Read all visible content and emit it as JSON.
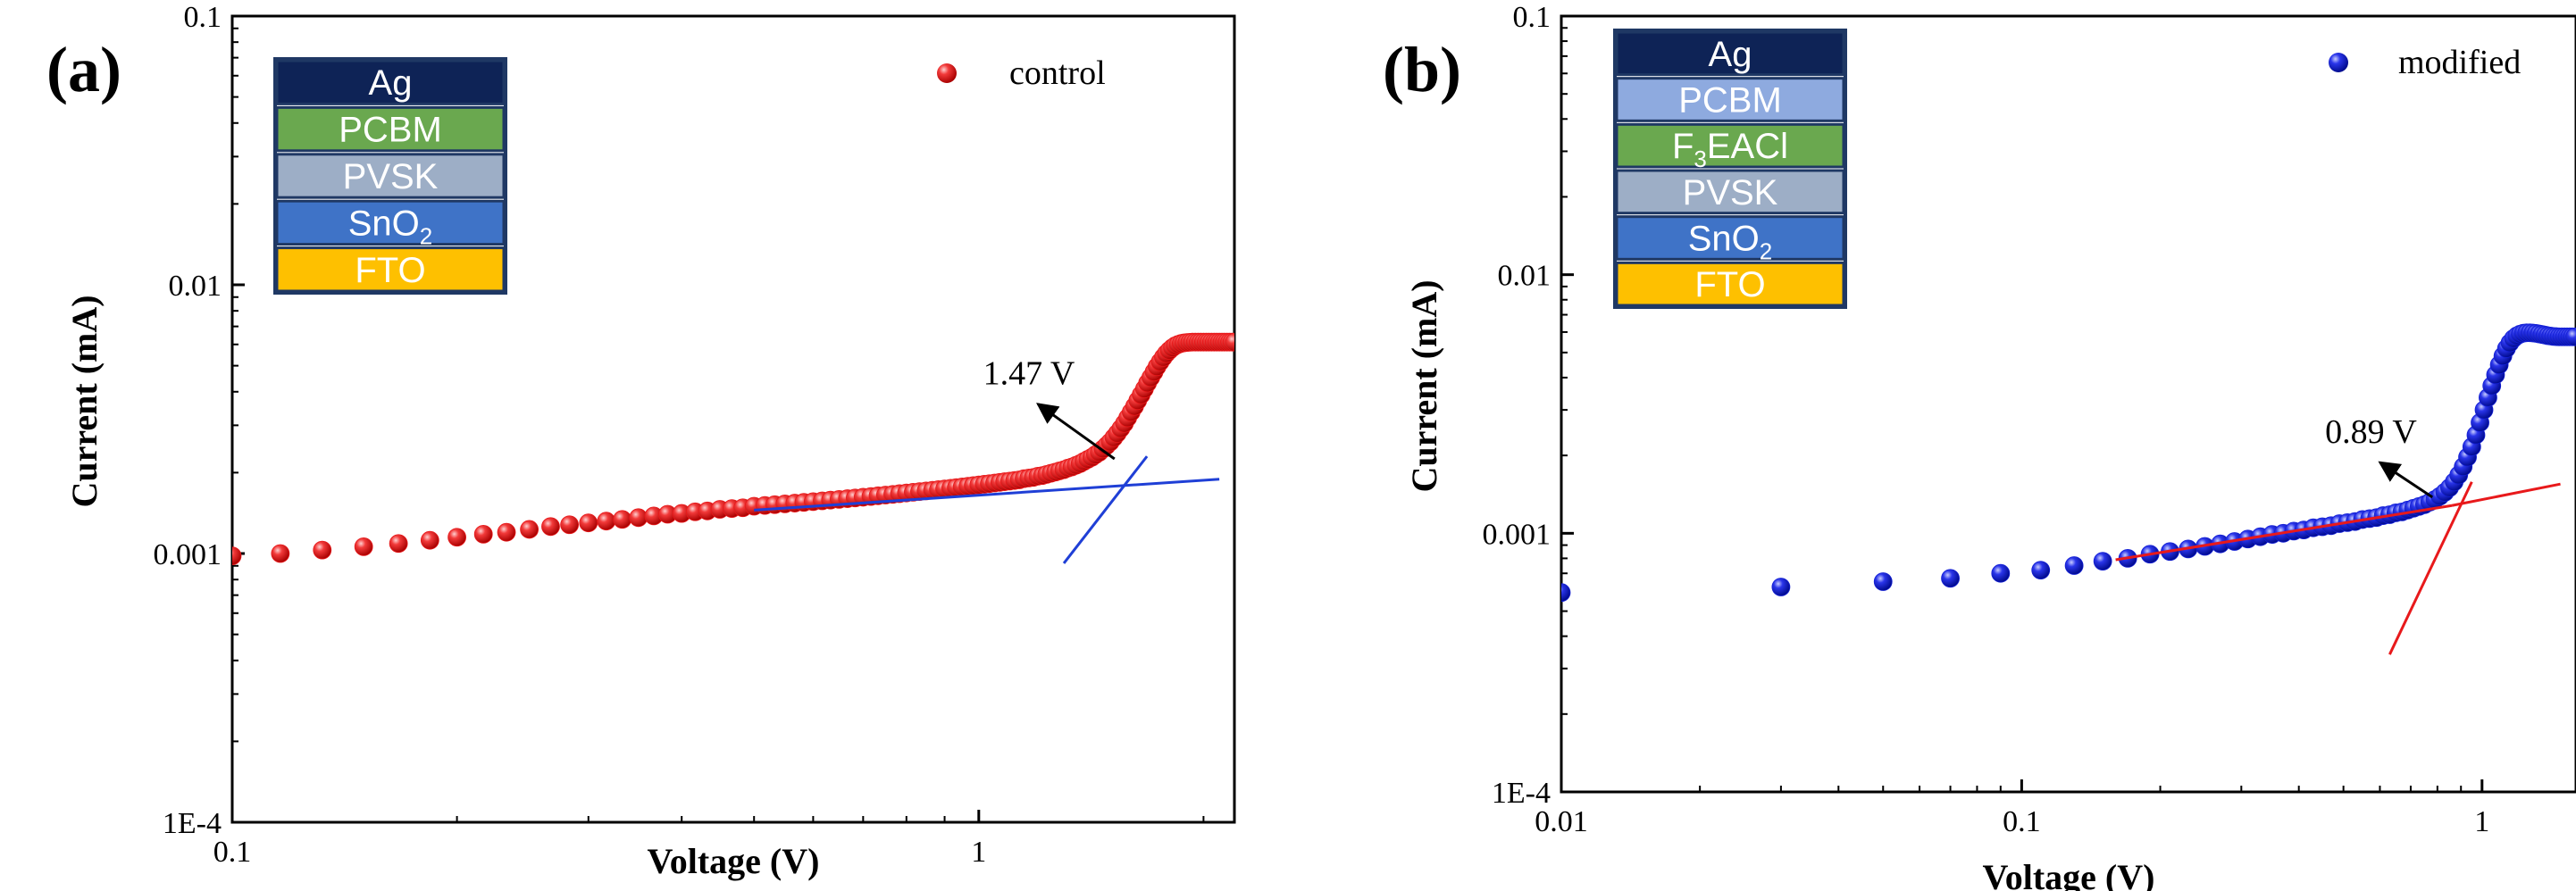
{
  "chart_data": [
    {
      "type": "scatter",
      "panel_label": "(a)",
      "xlabel": "Voltage (V)",
      "ylabel": "Current (mA)",
      "x_scale": "log",
      "y_scale": "log",
      "xlim": [
        0.1,
        2.2
      ],
      "ylim": [
        0.0001,
        0.1
      ],
      "x_ticks": [
        {
          "value": 0.1,
          "label": "0.1"
        },
        {
          "value": 1,
          "label": "1"
        }
      ],
      "y_ticks": [
        {
          "value": 0.0001,
          "label": "1E-4"
        },
        {
          "value": 0.001,
          "label": "0.001"
        },
        {
          "value": 0.01,
          "label": "0.01"
        },
        {
          "value": 0.1,
          "label": "0.1"
        }
      ],
      "legend": {
        "label": "control",
        "placement": "top-right"
      },
      "series": [
        {
          "name": "control",
          "color": "#e8191b",
          "points": [
            [
              0.1,
              0.00098
            ],
            [
              0.116,
              0.001
            ],
            [
              0.132,
              0.00103
            ],
            [
              0.15,
              0.00106
            ],
            [
              0.167,
              0.00109
            ],
            [
              0.184,
              0.00112
            ],
            [
              0.2,
              0.00115
            ],
            [
              0.217,
              0.00118
            ],
            [
              0.233,
              0.0012
            ],
            [
              0.25,
              0.00123
            ],
            [
              0.267,
              0.00126
            ],
            [
              0.283,
              0.00128
            ],
            [
              0.3,
              0.0013
            ],
            [
              0.317,
              0.00132
            ],
            [
              0.333,
              0.00134
            ],
            [
              0.35,
              0.00136
            ],
            [
              0.367,
              0.00138
            ],
            [
              0.383,
              0.0014
            ],
            [
              0.4,
              0.00141
            ],
            [
              0.417,
              0.00143
            ],
            [
              0.433,
              0.00144
            ],
            [
              0.45,
              0.00146
            ],
            [
              0.467,
              0.00147
            ],
            [
              0.483,
              0.00148
            ],
            [
              0.5,
              0.0015
            ],
            [
              0.517,
              0.00151
            ],
            [
              0.533,
              0.00152
            ],
            [
              0.55,
              0.00153
            ],
            [
              0.567,
              0.00154
            ],
            [
              0.583,
              0.00155
            ],
            [
              0.6,
              0.00156
            ],
            [
              0.617,
              0.00157
            ],
            [
              0.633,
              0.00158
            ],
            [
              0.65,
              0.00159
            ],
            [
              0.667,
              0.0016
            ],
            [
              0.683,
              0.00161
            ],
            [
              0.7,
              0.00162
            ],
            [
              0.717,
              0.00163
            ],
            [
              0.733,
              0.00164
            ],
            [
              0.75,
              0.00165
            ],
            [
              0.767,
              0.00166
            ],
            [
              0.783,
              0.00167
            ],
            [
              0.8,
              0.00168
            ],
            [
              0.817,
              0.00169
            ],
            [
              0.833,
              0.0017
            ],
            [
              0.85,
              0.00171
            ],
            [
              0.867,
              0.00172
            ],
            [
              0.883,
              0.00173
            ],
            [
              0.9,
              0.00174
            ],
            [
              0.917,
              0.00175
            ],
            [
              0.933,
              0.00176
            ],
            [
              0.95,
              0.00177
            ],
            [
              0.967,
              0.00178
            ],
            [
              0.983,
              0.00179
            ],
            [
              1.0,
              0.0018
            ],
            [
              1.017,
              0.00181
            ],
            [
              1.033,
              0.00182
            ],
            [
              1.05,
              0.00183
            ],
            [
              1.067,
              0.00184
            ],
            [
              1.083,
              0.00185
            ],
            [
              1.1,
              0.00186
            ],
            [
              1.117,
              0.00187
            ],
            [
              1.133,
              0.00188
            ],
            [
              1.15,
              0.0019
            ],
            [
              1.167,
              0.00191
            ],
            [
              1.183,
              0.00192
            ],
            [
              1.2,
              0.00194
            ],
            [
              1.217,
              0.00195
            ],
            [
              1.233,
              0.00197
            ],
            [
              1.25,
              0.00199
            ],
            [
              1.267,
              0.00201
            ],
            [
              1.283,
              0.00203
            ],
            [
              1.3,
              0.00205
            ],
            [
              1.317,
              0.00208
            ],
            [
              1.333,
              0.0021
            ],
            [
              1.35,
              0.00213
            ],
            [
              1.367,
              0.00216
            ],
            [
              1.383,
              0.0022
            ],
            [
              1.4,
              0.00224
            ],
            [
              1.417,
              0.00228
            ],
            [
              1.433,
              0.00233
            ],
            [
              1.45,
              0.00238
            ],
            [
              1.467,
              0.00245
            ],
            [
              1.483,
              0.00252
            ],
            [
              1.5,
              0.0026
            ],
            [
              1.517,
              0.0027
            ],
            [
              1.533,
              0.0028
            ],
            [
              1.55,
              0.00292
            ],
            [
              1.567,
              0.00305
            ],
            [
              1.583,
              0.0032
            ],
            [
              1.6,
              0.00336
            ],
            [
              1.617,
              0.00353
            ],
            [
              1.633,
              0.00371
            ],
            [
              1.65,
              0.0039
            ],
            [
              1.667,
              0.0041
            ],
            [
              1.683,
              0.00431
            ],
            [
              1.7,
              0.00452
            ],
            [
              1.717,
              0.00474
            ],
            [
              1.733,
              0.00496
            ],
            [
              1.75,
              0.00517
            ],
            [
              1.767,
              0.00537
            ],
            [
              1.783,
              0.00555
            ],
            [
              1.8,
              0.0057
            ],
            [
              1.817,
              0.00583
            ],
            [
              1.833,
              0.00593
            ],
            [
              1.85,
              0.006
            ],
            [
              1.867,
              0.00605
            ],
            [
              1.883,
              0.00608
            ],
            [
              1.9,
              0.0061
            ],
            [
              1.917,
              0.00611
            ],
            [
              1.933,
              0.00612
            ],
            [
              1.95,
              0.00612
            ],
            [
              1.967,
              0.00612
            ],
            [
              1.983,
              0.00612
            ],
            [
              2.0,
              0.00612
            ],
            [
              2.017,
              0.00612
            ],
            [
              2.033,
              0.00612
            ],
            [
              2.05,
              0.00612
            ],
            [
              2.067,
              0.00612
            ],
            [
              2.083,
              0.00612
            ],
            [
              2.1,
              0.00612
            ],
            [
              2.117,
              0.00612
            ],
            [
              2.133,
              0.00612
            ],
            [
              2.15,
              0.00612
            ],
            [
              2.167,
              0.00612
            ],
            [
              2.183,
              0.00612
            ],
            [
              2.2,
              0.00612
            ]
          ]
        }
      ],
      "fit_lines": [
        {
          "color": "#1f3fd6",
          "from": [
            0.5,
            0.00145
          ],
          "to": [
            2.1,
            0.00189
          ]
        },
        {
          "color": "#1f3fd6",
          "from": [
            1.3,
            0.00092
          ],
          "to": [
            1.68,
            0.0023
          ]
        }
      ],
      "annotation": {
        "text": "1.47 V",
        "arrow_from": [
          1.52,
          0.00225
        ],
        "arrow_to": [
          1.2,
          0.0036
        ]
      },
      "device_stack": [
        {
          "label": "Ag",
          "color": "#0e2356"
        },
        {
          "label": "PCBM",
          "color": "#6aa84f"
        },
        {
          "label": "PVSK",
          "color": "#9daec6"
        },
        {
          "label": "SnO",
          "sub": "2",
          "color": "#3f73c7"
        },
        {
          "label": "FTO",
          "color": "#fec000"
        }
      ]
    },
    {
      "type": "scatter",
      "panel_label": "(b)",
      "xlabel": "Voltage (V)",
      "ylabel": "Current (mA)",
      "x_scale": "log",
      "y_scale": "log",
      "xlim": [
        0.01,
        1.6
      ],
      "ylim": [
        0.0001,
        0.1
      ],
      "x_ticks": [
        {
          "value": 0.01,
          "label": "0.01"
        },
        {
          "value": 0.1,
          "label": "0.1"
        },
        {
          "value": 1,
          "label": "1"
        }
      ],
      "y_ticks": [
        {
          "value": 0.0001,
          "label": "1E-4"
        },
        {
          "value": 0.001,
          "label": "0.001"
        },
        {
          "value": 0.01,
          "label": "0.01"
        },
        {
          "value": 0.1,
          "label": "0.1"
        }
      ],
      "legend": {
        "label": "modified",
        "placement": "top-right"
      },
      "series": [
        {
          "name": "modified",
          "color": "#1420d6",
          "points": [
            [
              0.01,
              0.00059
            ],
            [
              0.03,
              0.00062
            ],
            [
              0.05,
              0.00065
            ],
            [
              0.07,
              0.00067
            ],
            [
              0.09,
              0.0007
            ],
            [
              0.11,
              0.00072
            ],
            [
              0.13,
              0.00075
            ],
            [
              0.15,
              0.00078
            ],
            [
              0.17,
              0.0008
            ],
            [
              0.19,
              0.00083
            ],
            [
              0.21,
              0.00085
            ],
            [
              0.23,
              0.00087
            ],
            [
              0.25,
              0.00089
            ],
            [
              0.27,
              0.00091
            ],
            [
              0.29,
              0.00093
            ],
            [
              0.31,
              0.00095
            ],
            [
              0.33,
              0.00097
            ],
            [
              0.35,
              0.00099
            ],
            [
              0.37,
              0.001
            ],
            [
              0.39,
              0.00102
            ],
            [
              0.41,
              0.00103
            ],
            [
              0.43,
              0.00105
            ],
            [
              0.45,
              0.00106
            ],
            [
              0.47,
              0.00107
            ],
            [
              0.49,
              0.00109
            ],
            [
              0.51,
              0.0011
            ],
            [
              0.53,
              0.00111
            ],
            [
              0.55,
              0.00113
            ],
            [
              0.57,
              0.00114
            ],
            [
              0.59,
              0.00115
            ],
            [
              0.61,
              0.00117
            ],
            [
              0.63,
              0.00118
            ],
            [
              0.65,
              0.0012
            ],
            [
              0.67,
              0.00121
            ],
            [
              0.69,
              0.00123
            ],
            [
              0.71,
              0.00125
            ],
            [
              0.73,
              0.00127
            ],
            [
              0.75,
              0.00129
            ],
            [
              0.77,
              0.00132
            ],
            [
              0.79,
              0.00135
            ],
            [
              0.81,
              0.00139
            ],
            [
              0.83,
              0.00144
            ],
            [
              0.85,
              0.0015
            ],
            [
              0.87,
              0.00158
            ],
            [
              0.89,
              0.00168
            ],
            [
              0.91,
              0.00181
            ],
            [
              0.93,
              0.00197
            ],
            [
              0.95,
              0.00216
            ],
            [
              0.97,
              0.0024
            ],
            [
              0.99,
              0.00268
            ],
            [
              1.01,
              0.003
            ],
            [
              1.03,
              0.00335
            ],
            [
              1.05,
              0.00372
            ],
            [
              1.07,
              0.0041
            ],
            [
              1.09,
              0.00448
            ],
            [
              1.11,
              0.00485
            ],
            [
              1.13,
              0.00518
            ],
            [
              1.15,
              0.00545
            ],
            [
              1.17,
              0.00566
            ],
            [
              1.19,
              0.0058
            ],
            [
              1.21,
              0.00589
            ],
            [
              1.23,
              0.00594
            ],
            [
              1.25,
              0.00596
            ],
            [
              1.27,
              0.00596
            ],
            [
              1.29,
              0.00595
            ],
            [
              1.31,
              0.00593
            ],
            [
              1.33,
              0.0059
            ],
            [
              1.35,
              0.00587
            ],
            [
              1.37,
              0.00584
            ],
            [
              1.39,
              0.00581
            ],
            [
              1.41,
              0.00579
            ],
            [
              1.43,
              0.00577
            ],
            [
              1.45,
              0.00576
            ],
            [
              1.47,
              0.00575
            ],
            [
              1.49,
              0.00575
            ],
            [
              1.51,
              0.00575
            ],
            [
              1.53,
              0.00575
            ],
            [
              1.55,
              0.00575
            ],
            [
              1.57,
              0.00575
            ],
            [
              1.59,
              0.00575
            ]
          ]
        }
      ],
      "fit_lines": [
        {
          "color": "#e8191b",
          "from": [
            0.16,
            0.00079
          ],
          "to": [
            0.86,
            0.00128
          ]
        },
        {
          "color": "#e8191b",
          "from": [
            0.86,
            0.00128
          ],
          "to": [
            1.48,
            0.00155
          ]
        },
        {
          "color": "#e8191b",
          "from": [
            0.63,
            0.00034
          ],
          "to": [
            0.95,
            0.00158
          ]
        }
      ],
      "annotation": {
        "text": "0.89 V",
        "arrow_from": [
          0.78,
          0.00138
        ],
        "arrow_to": [
          0.6,
          0.00188
        ]
      },
      "device_stack": [
        {
          "label": "Ag",
          "color": "#0e2356"
        },
        {
          "label": "PCBM",
          "color": "#8eaadf"
        },
        {
          "label": "F",
          "sub": "3",
          "label_after": "EACl",
          "color": "#6aa84f"
        },
        {
          "label": "PVSK",
          "color": "#9daec6"
        },
        {
          "label": "SnO",
          "sub": "2",
          "color": "#3f73c7"
        },
        {
          "label": "FTO",
          "color": "#fec000"
        }
      ]
    }
  ]
}
